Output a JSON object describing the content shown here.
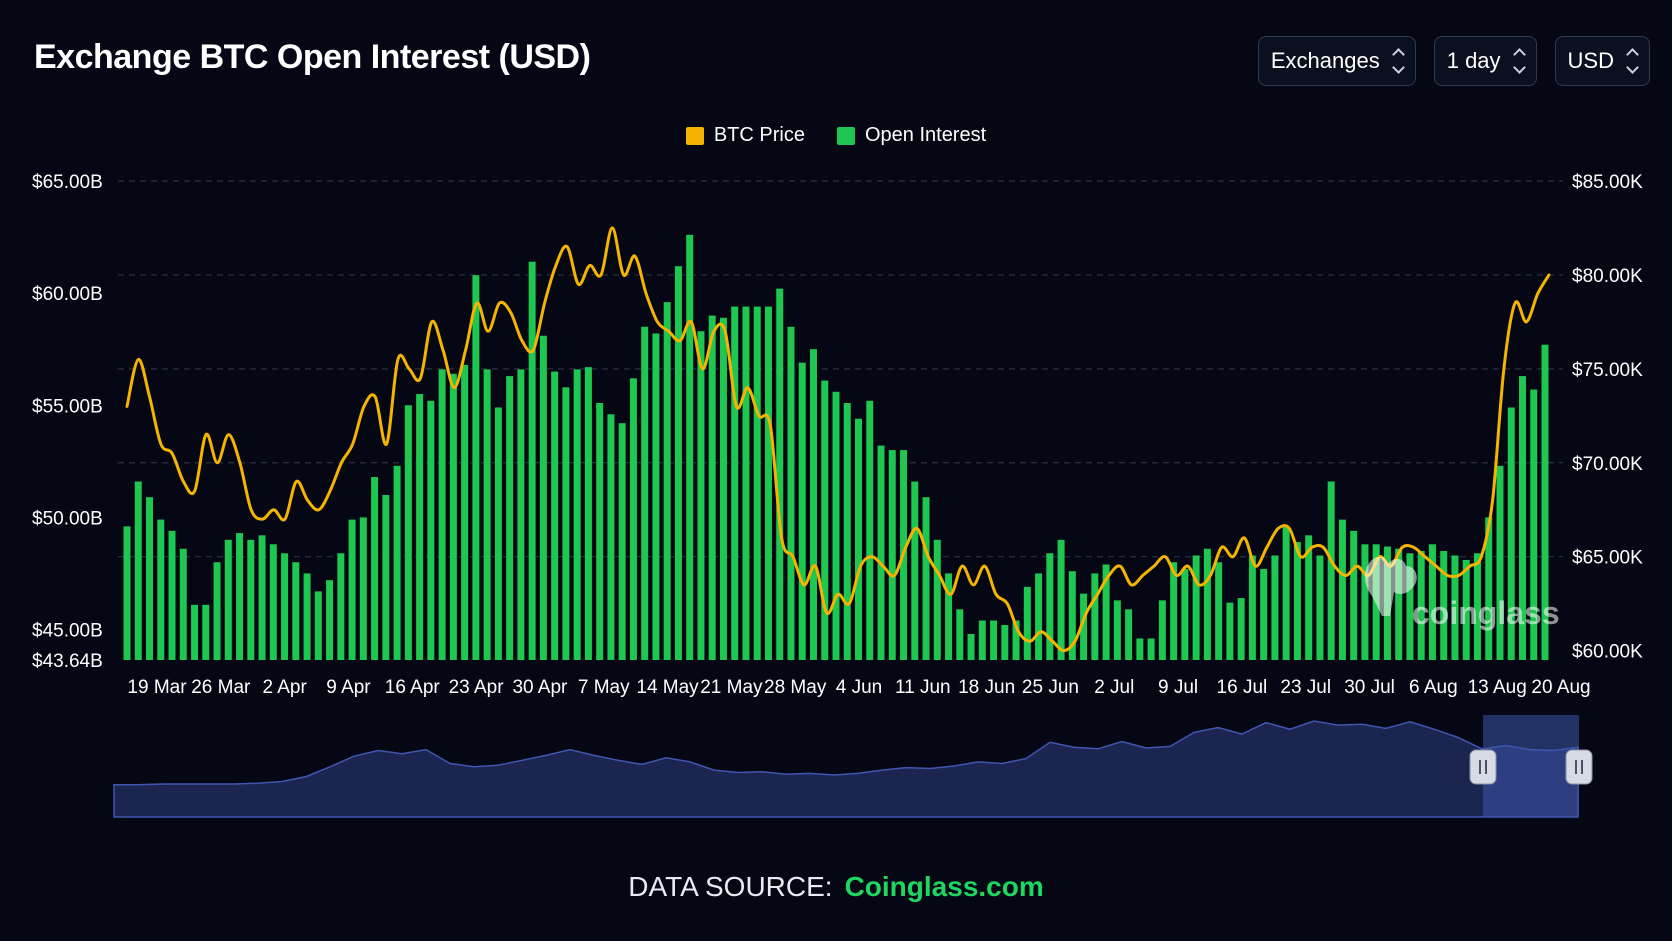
{
  "header": {
    "title": "Exchange BTC Open Interest (USD)",
    "selects": [
      {
        "name": "exchanges",
        "label": "Exchanges"
      },
      {
        "name": "interval",
        "label": "1 day"
      },
      {
        "name": "currency",
        "label": "USD"
      }
    ]
  },
  "footer": {
    "prefix": "DATA SOURCE:",
    "source": "Coinglass.com"
  },
  "watermark": "coinglass",
  "colors": {
    "price": "#f5b400",
    "oi": "#1ec74f",
    "background": "#050814",
    "navigator": "#1b2550",
    "navigator_line": "#4056b0"
  },
  "chart_data": {
    "type": "bar",
    "x_tick_labels": [
      "19 Mar",
      "26 Mar",
      "2 Apr",
      "9 Apr",
      "16 Apr",
      "23 Apr",
      "30 Apr",
      "7 May",
      "14 May",
      "21 May",
      "28 May",
      "4 Jun",
      "11 Jun",
      "18 Jun",
      "25 Jun",
      "2 Jul",
      "9 Jul",
      "16 Jul",
      "23 Jul",
      "30 Jul",
      "6 Aug",
      "13 Aug",
      "20 Aug"
    ],
    "y_left": {
      "ticks": [
        "$65.00B",
        "$60.00B",
        "$55.00B",
        "$50.00B",
        "$45.00B",
        "$43.64B"
      ],
      "min": 43.64,
      "max": 65,
      "unit": "B USD"
    },
    "y_right": {
      "ticks": [
        "$85.00K",
        "$80.00K",
        "$75.00K",
        "$70.00K",
        "$65.00K",
        "$60.00K"
      ],
      "min": 59.5,
      "max": 85,
      "unit": "K USD"
    },
    "grid": true,
    "legend_position": "top-center",
    "series": [
      {
        "name": "BTC Price",
        "kind": "line",
        "axis": "right",
        "values": [
          73.0,
          75.5,
          73.5,
          71.0,
          70.5,
          69.0,
          68.5,
          71.5,
          70.0,
          71.5,
          70.0,
          67.5,
          67.0,
          67.5,
          67.0,
          69.0,
          68.0,
          67.5,
          68.5,
          70.0,
          71.0,
          73.0,
          73.5,
          71.0,
          75.5,
          75.0,
          74.5,
          77.5,
          76.0,
          74.0,
          76.0,
          78.5,
          77.0,
          78.5,
          78.0,
          76.5,
          76.0,
          78.5,
          80.5,
          81.5,
          79.5,
          80.5,
          80.0,
          82.5,
          80.0,
          81.0,
          79.0,
          77.5,
          77.0,
          76.5,
          77.5,
          75.0,
          77.0,
          77.0,
          73.0,
          74.0,
          72.5,
          72.0,
          66.0,
          65.0,
          63.5,
          64.5,
          62.0,
          63.0,
          62.5,
          64.5,
          65.0,
          64.5,
          64.0,
          65.5,
          66.5,
          65.0,
          64.0,
          63.0,
          64.5,
          63.5,
          64.5,
          63.0,
          62.5,
          61.0,
          60.5,
          61.0,
          60.5,
          60.0,
          60.5,
          62.0,
          63.0,
          64.0,
          64.5,
          63.5,
          64.0,
          64.5,
          65.0,
          64.0,
          64.5,
          63.5,
          64.0,
          65.5,
          65.0,
          66.0,
          64.5,
          65.5,
          66.5,
          66.5,
          65.0,
          65.5,
          65.5,
          64.5,
          64.0,
          64.5,
          64.0,
          65.0,
          64.5,
          65.5,
          65.5,
          65.0,
          64.5,
          64.0,
          64.0,
          64.5,
          65.0,
          68.0,
          75.0,
          78.5,
          77.5,
          79.0,
          80.0
        ]
      },
      {
        "name": "Open Interest",
        "kind": "bar",
        "axis": "left",
        "values": [
          49.6,
          51.6,
          50.9,
          49.9,
          49.4,
          48.6,
          46.1,
          46.1,
          48.0,
          49.0,
          49.3,
          49.0,
          49.2,
          48.8,
          48.4,
          48.0,
          47.5,
          46.7,
          47.2,
          48.4,
          49.9,
          50.0,
          51.8,
          51.0,
          52.3,
          55.0,
          55.5,
          55.2,
          56.6,
          56.4,
          56.8,
          60.8,
          56.6,
          54.9,
          56.3,
          56.6,
          61.4,
          58.1,
          56.5,
          55.8,
          56.6,
          56.7,
          55.1,
          54.6,
          54.2,
          56.2,
          58.5,
          58.2,
          59.6,
          61.2,
          62.6,
          58.3,
          59.0,
          58.9,
          59.4,
          59.4,
          59.4,
          59.4,
          60.2,
          58.5,
          56.9,
          57.5,
          56.1,
          55.6,
          55.1,
          54.4,
          55.2,
          53.2,
          53.0,
          53.0,
          51.6,
          50.9,
          49.0,
          47.5,
          45.9,
          44.8,
          45.4,
          45.4,
          45.2,
          45.4,
          46.9,
          47.5,
          48.4,
          49.0,
          47.6,
          46.6,
          47.5,
          47.9,
          46.3,
          45.9,
          44.6,
          44.6,
          46.3,
          48.0,
          47.7,
          48.3,
          48.6,
          48.0,
          46.2,
          46.4,
          48.3,
          47.7,
          48.3,
          49.6,
          48.9,
          49.2,
          48.3,
          51.6,
          49.9,
          49.4,
          48.8,
          48.8,
          48.7,
          48.6,
          48.4,
          48.5,
          48.8,
          48.5,
          48.3,
          48.1,
          48.4,
          50.0,
          52.3,
          54.9,
          56.3,
          55.7,
          57.7
        ]
      }
    ],
    "navigator": {
      "type": "area",
      "values": [
        1,
        1,
        1.1,
        1.1,
        1.1,
        1.1,
        1.2,
        1.4,
        2.0,
        3.2,
        4.5,
        5.2,
        4.8,
        5.3,
        3.6,
        3.2,
        3.4,
        4.0,
        4.6,
        5.3,
        4.6,
        4.0,
        3.5,
        4.3,
        3.8,
        2.8,
        2.5,
        2.6,
        2.3,
        2.4,
        2.2,
        2.4,
        2.8,
        3.1,
        3.0,
        3.3,
        3.8,
        3.6,
        4.2,
        6.2,
        5.6,
        5.4,
        6.3,
        5.5,
        5.7,
        7.4,
        8.0,
        7.2,
        8.6,
        7.8,
        8.8,
        8.3,
        8.4,
        7.9,
        8.7,
        7.8,
        6.8,
        5.4,
        5.8,
        5.3,
        5.2,
        5.6
      ]
    }
  }
}
